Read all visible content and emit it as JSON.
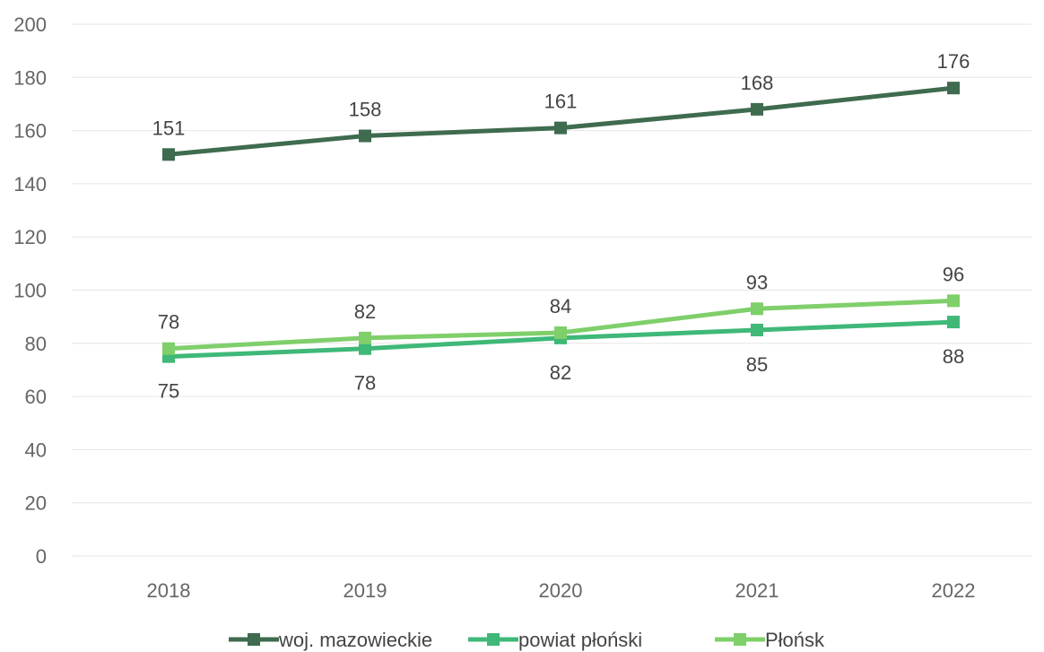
{
  "chart_data": {
    "type": "line",
    "title": "",
    "xlabel": "",
    "ylabel": "",
    "categories": [
      "2018",
      "2019",
      "2020",
      "2021",
      "2022"
    ],
    "ylim": [
      0,
      200
    ],
    "yticks": [
      "0",
      "20",
      "40",
      "60",
      "80",
      "100",
      "120",
      "140",
      "160",
      "180",
      "200"
    ],
    "grid": true,
    "legend_position": "bottom",
    "series": [
      {
        "name": "woj. mazowieckie",
        "values": [
          151,
          158,
          161,
          168,
          176
        ],
        "color": "#3f6b4f",
        "label_position": "above"
      },
      {
        "name": "powiat płoński",
        "values": [
          75,
          78,
          82,
          85,
          88
        ],
        "color": "#3fb878",
        "label_position": "below"
      },
      {
        "name": "Płońsk",
        "values": [
          78,
          82,
          84,
          93,
          96
        ],
        "color": "#7fcf6a",
        "label_position": "above"
      }
    ]
  }
}
